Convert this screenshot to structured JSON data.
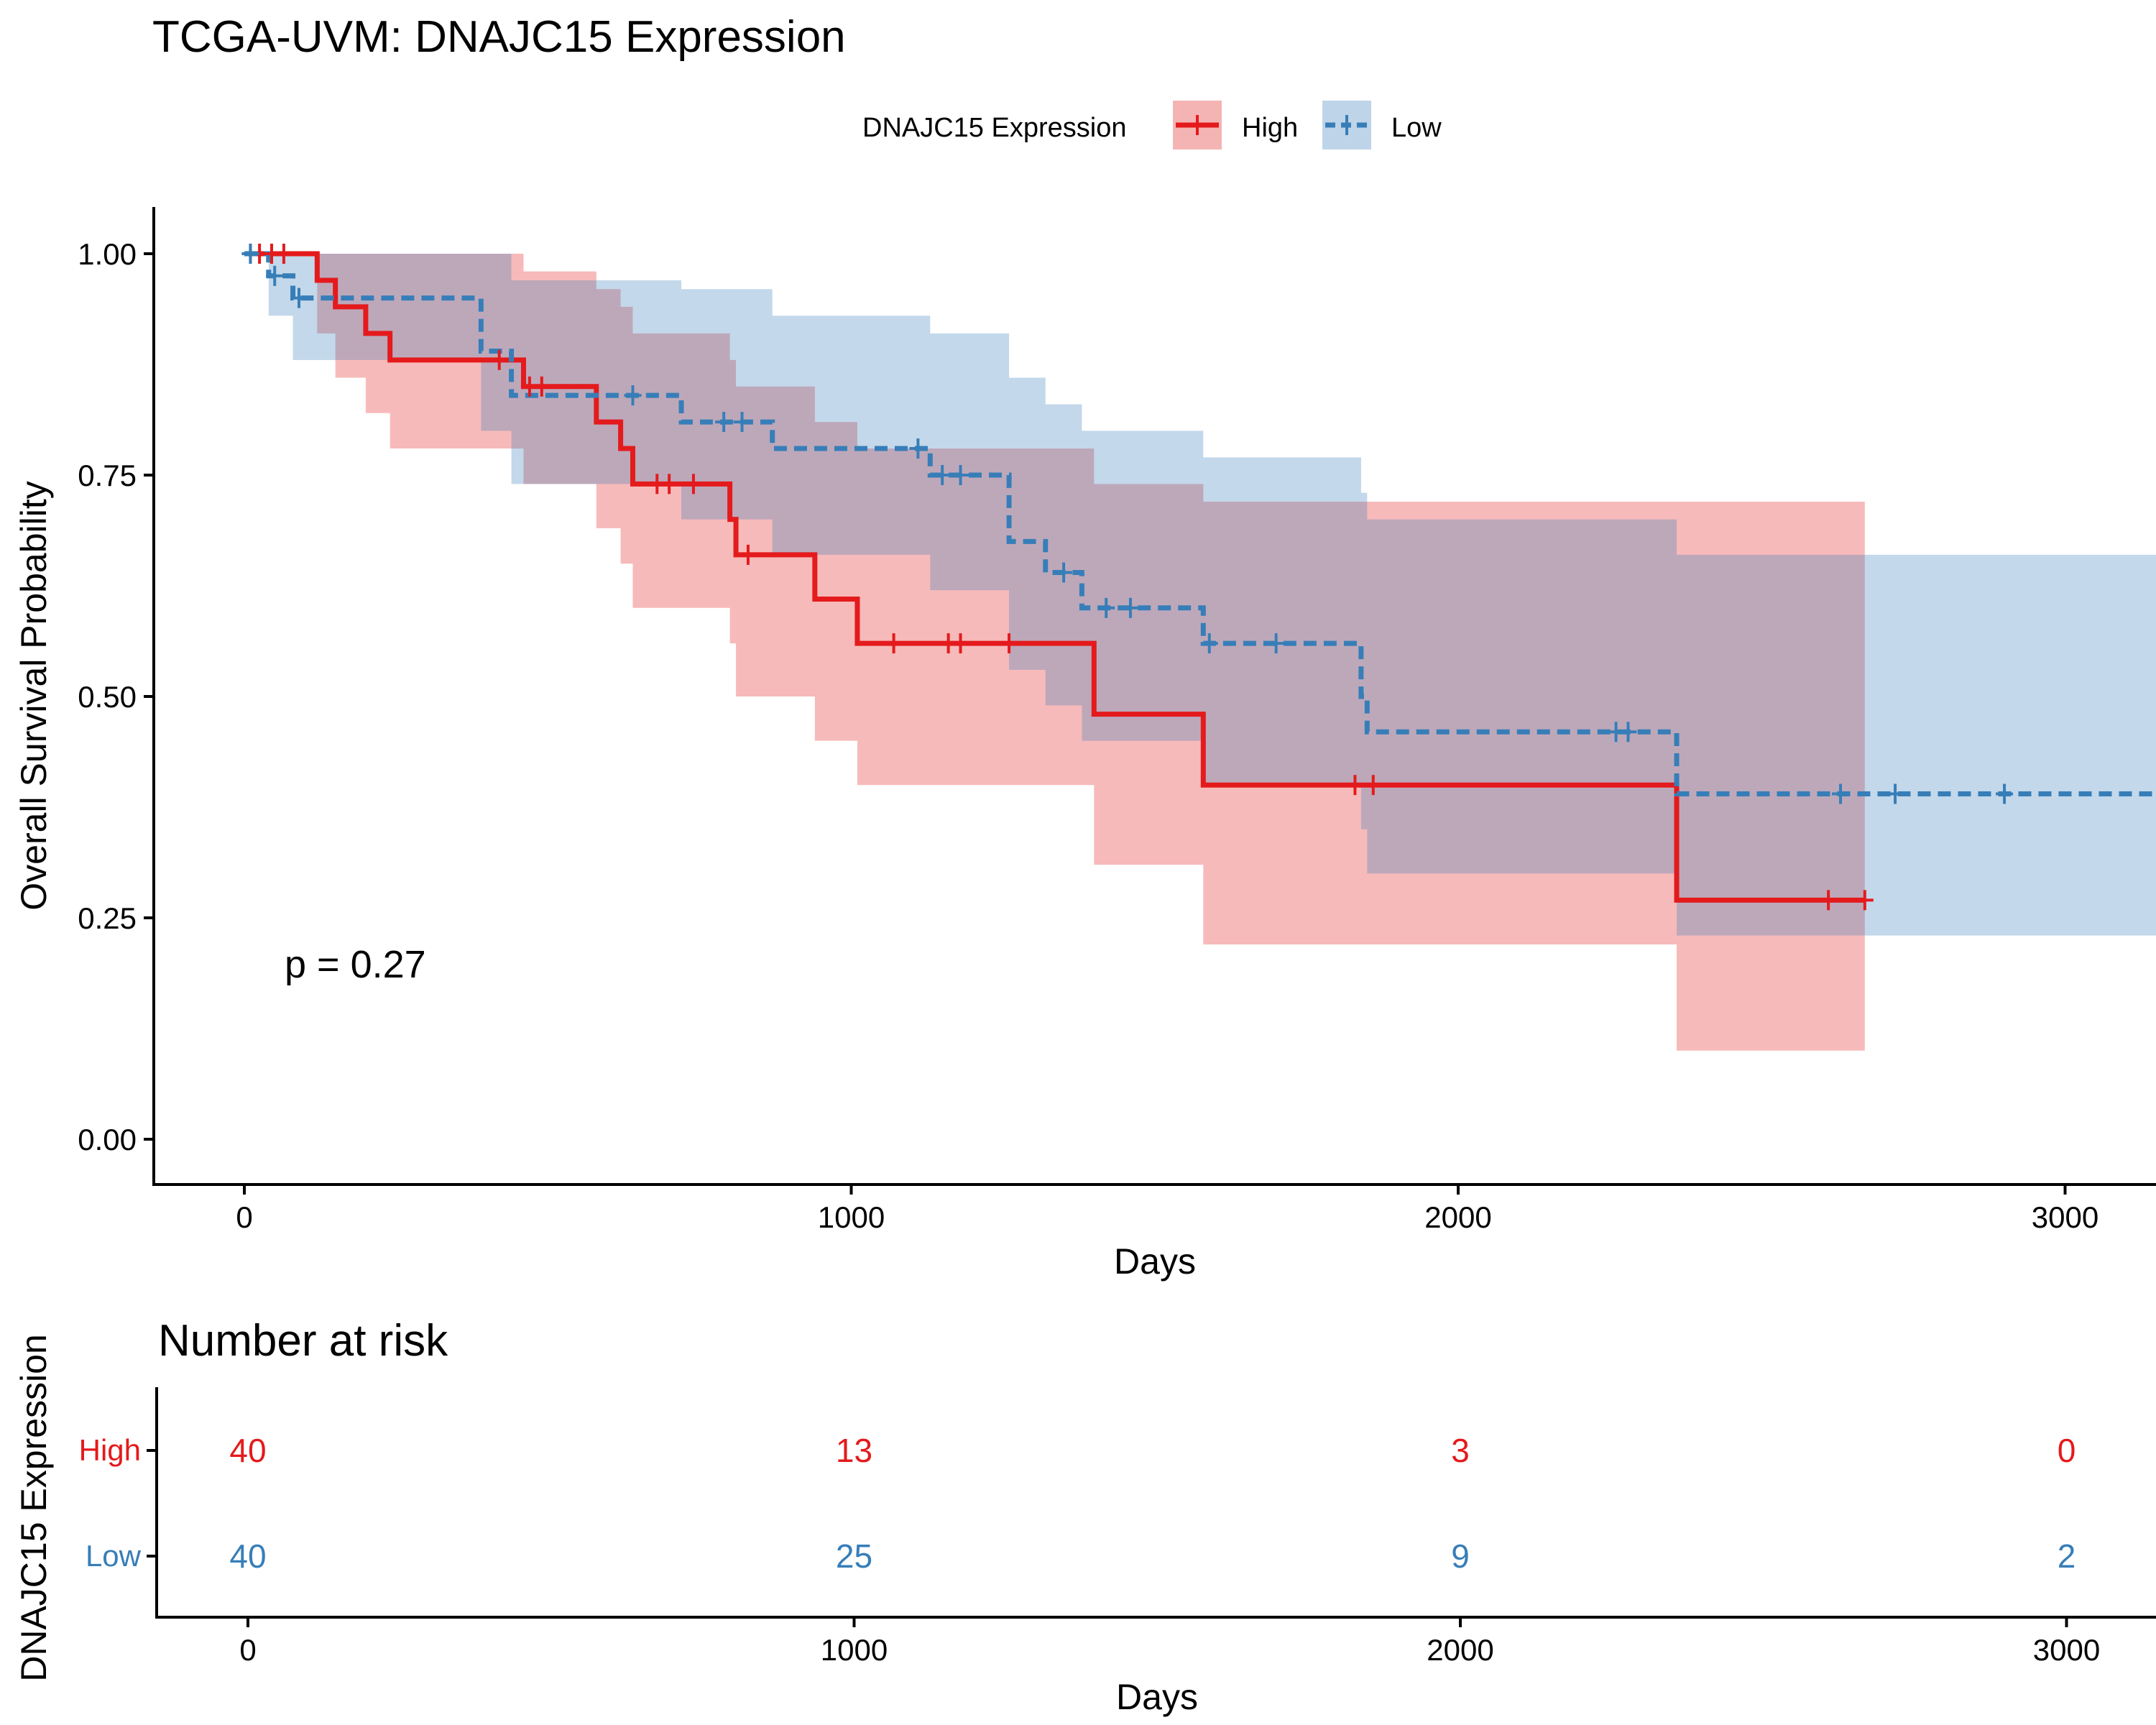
{
  "colors": {
    "high": "#E41A1C",
    "low": "#377EB8",
    "high_fill": "#F5B4B4",
    "low_fill": "#BED4E8"
  },
  "chart_data": {
    "type": "line",
    "title": "TCGA-UVM: DNAJC15 Expression",
    "xlabel": "Days",
    "ylabel": "Overall Survival Probability",
    "xlim": [
      -150,
      3150
    ],
    "ylim": [
      -0.05,
      1.05
    ],
    "x_ticks": [
      "0",
      "1000",
      "2000",
      "3000"
    ],
    "y_ticks": [
      "0.00",
      "0.25",
      "0.50",
      "0.75",
      "1.00"
    ],
    "legend": {
      "title": "DNAJC15 Expression",
      "position": "top"
    },
    "annotation": "p = 0.27",
    "series": [
      {
        "name": "High",
        "key": "high",
        "line_style": "solid",
        "steps": [
          [
            0,
            1.0
          ],
          [
            120,
            0.97
          ],
          [
            150,
            0.94
          ],
          [
            200,
            0.91
          ],
          [
            240,
            0.88
          ],
          [
            460,
            0.85
          ],
          [
            580,
            0.81
          ],
          [
            620,
            0.78
          ],
          [
            640,
            0.74
          ],
          [
            800,
            0.7
          ],
          [
            810,
            0.66
          ],
          [
            940,
            0.61
          ],
          [
            1010,
            0.56
          ],
          [
            1400,
            0.48
          ],
          [
            1580,
            0.4
          ],
          [
            2360,
            0.27
          ],
          [
            2670,
            0.27
          ]
        ],
        "lower": [
          [
            0,
            1.0
          ],
          [
            120,
            0.91
          ],
          [
            150,
            0.86
          ],
          [
            200,
            0.82
          ],
          [
            240,
            0.78
          ],
          [
            460,
            0.74
          ],
          [
            580,
            0.69
          ],
          [
            620,
            0.65
          ],
          [
            640,
            0.6
          ],
          [
            800,
            0.56
          ],
          [
            810,
            0.5
          ],
          [
            940,
            0.45
          ],
          [
            1010,
            0.4
          ],
          [
            1400,
            0.31
          ],
          [
            1580,
            0.22
          ],
          [
            2360,
            0.1
          ],
          [
            2670,
            0.1
          ]
        ],
        "upper": [
          [
            0,
            1.0
          ],
          [
            120,
            1.0
          ],
          [
            150,
            1.0
          ],
          [
            200,
            1.0
          ],
          [
            240,
            1.0
          ],
          [
            460,
            0.98
          ],
          [
            580,
            0.96
          ],
          [
            620,
            0.94
          ],
          [
            640,
            0.91
          ],
          [
            800,
            0.88
          ],
          [
            810,
            0.85
          ],
          [
            940,
            0.81
          ],
          [
            1010,
            0.78
          ],
          [
            1400,
            0.74
          ],
          [
            1580,
            0.72
          ],
          [
            2360,
            0.72
          ],
          [
            2670,
            0.72
          ]
        ],
        "censor": [
          [
            10,
            1.0
          ],
          [
            25,
            1.0
          ],
          [
            45,
            1.0
          ],
          [
            65,
            1.0
          ],
          [
            420,
            0.88
          ],
          [
            470,
            0.85
          ],
          [
            490,
            0.85
          ],
          [
            680,
            0.74
          ],
          [
            700,
            0.74
          ],
          [
            740,
            0.74
          ],
          [
            830,
            0.66
          ],
          [
            1070,
            0.56
          ],
          [
            1160,
            0.56
          ],
          [
            1180,
            0.56
          ],
          [
            1260,
            0.56
          ],
          [
            1830,
            0.4
          ],
          [
            1860,
            0.4
          ],
          [
            2610,
            0.27
          ],
          [
            2670,
            0.27
          ]
        ]
      },
      {
        "name": "Low",
        "key": "low",
        "line_style": "dashed",
        "steps": [
          [
            0,
            1.0
          ],
          [
            40,
            0.975
          ],
          [
            80,
            0.95
          ],
          [
            390,
            0.89
          ],
          [
            440,
            0.84
          ],
          [
            720,
            0.81
          ],
          [
            870,
            0.78
          ],
          [
            1130,
            0.75
          ],
          [
            1260,
            0.675
          ],
          [
            1320,
            0.64
          ],
          [
            1380,
            0.6
          ],
          [
            1580,
            0.56
          ],
          [
            1840,
            0.5
          ],
          [
            1850,
            0.46
          ],
          [
            2360,
            0.39
          ],
          [
            3150,
            0.39
          ]
        ],
        "lower": [
          [
            0,
            1.0
          ],
          [
            40,
            0.93
          ],
          [
            80,
            0.88
          ],
          [
            390,
            0.8
          ],
          [
            440,
            0.74
          ],
          [
            720,
            0.7
          ],
          [
            870,
            0.66
          ],
          [
            1130,
            0.62
          ],
          [
            1260,
            0.53
          ],
          [
            1320,
            0.49
          ],
          [
            1380,
            0.45
          ],
          [
            1580,
            0.4
          ],
          [
            1840,
            0.35
          ],
          [
            1850,
            0.3
          ],
          [
            2360,
            0.23
          ],
          [
            3150,
            0.23
          ]
        ],
        "upper": [
          [
            0,
            1.0
          ],
          [
            40,
            1.0
          ],
          [
            80,
            1.0
          ],
          [
            390,
            1.0
          ],
          [
            440,
            0.97
          ],
          [
            720,
            0.96
          ],
          [
            870,
            0.93
          ],
          [
            1130,
            0.91
          ],
          [
            1260,
            0.86
          ],
          [
            1320,
            0.83
          ],
          [
            1380,
            0.8
          ],
          [
            1580,
            0.77
          ],
          [
            1840,
            0.73
          ],
          [
            1850,
            0.7
          ],
          [
            2360,
            0.66
          ],
          [
            3150,
            0.66
          ]
        ],
        "censor": [
          [
            10,
            1.0
          ],
          [
            50,
            0.975
          ],
          [
            90,
            0.95
          ],
          [
            640,
            0.84
          ],
          [
            790,
            0.81
          ],
          [
            820,
            0.81
          ],
          [
            1110,
            0.78
          ],
          [
            1150,
            0.75
          ],
          [
            1180,
            0.75
          ],
          [
            1350,
            0.64
          ],
          [
            1420,
            0.6
          ],
          [
            1460,
            0.6
          ],
          [
            1590,
            0.56
          ],
          [
            1700,
            0.56
          ],
          [
            2260,
            0.46
          ],
          [
            2280,
            0.46
          ],
          [
            2630,
            0.39
          ],
          [
            2720,
            0.39
          ],
          [
            2900,
            0.39
          ]
        ]
      }
    ]
  },
  "risk_table": {
    "title": "Number at risk",
    "ylabel": "DNAJC15 Expression",
    "xlabel": "Days",
    "x_ticks": [
      "0",
      "1000",
      "2000",
      "3000"
    ],
    "timepoints": [
      0,
      1000,
      2000,
      3000
    ],
    "rows": [
      {
        "label": "High",
        "key": "high",
        "values": [
          "40",
          "13",
          "3",
          "0"
        ]
      },
      {
        "label": "Low",
        "key": "low",
        "values": [
          "40",
          "25",
          "9",
          "2"
        ]
      }
    ]
  }
}
